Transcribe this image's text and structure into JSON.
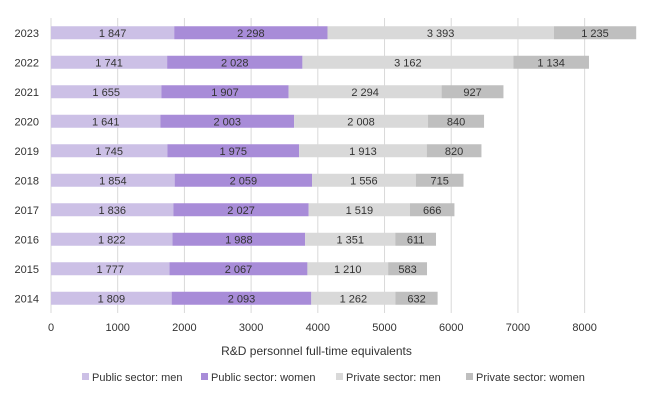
{
  "chart_data": {
    "type": "bar",
    "orientation": "horizontal",
    "stacked": true,
    "categories": [
      "2023",
      "2022",
      "2021",
      "2020",
      "2019",
      "2018",
      "2017",
      "2016",
      "2015",
      "2014"
    ],
    "series": [
      {
        "name": "Public sector: men",
        "color": "#ccc0e6",
        "values": [
          1847,
          1741,
          1655,
          1641,
          1745,
          1854,
          1836,
          1822,
          1777,
          1809
        ],
        "labels": [
          "1 847",
          "1 741",
          "1 655",
          "1 641",
          "1 745",
          "1 854",
          "1 836",
          "1 822",
          "1 777",
          "1 809"
        ]
      },
      {
        "name": "Public sector: women",
        "color": "#a88cd8",
        "values": [
          2298,
          2028,
          1907,
          2003,
          1975,
          2059,
          2027,
          1988,
          2067,
          2093
        ],
        "labels": [
          "2 298",
          "2 028",
          "1 907",
          "2 003",
          "1 975",
          "2 059",
          "2 027",
          "1 988",
          "2 067",
          "2 093"
        ]
      },
      {
        "name": "Private sector: men",
        "color": "#d9d9d9",
        "values": [
          3393,
          3162,
          2294,
          2008,
          1913,
          1556,
          1519,
          1351,
          1210,
          1262
        ],
        "labels": [
          "3 393",
          "3 162",
          "2 294",
          "2 008",
          "1 913",
          "1 556",
          "1 519",
          "1 351",
          "1 210",
          "1 262"
        ]
      },
      {
        "name": "Private sector: women",
        "color": "#bfbfbf",
        "values": [
          1235,
          1134,
          927,
          840,
          820,
          715,
          666,
          611,
          583,
          632
        ],
        "labels": [
          "1 235",
          "1 134",
          "927",
          "840",
          "820",
          "715",
          "666",
          "611",
          "583",
          "632"
        ]
      }
    ],
    "xlabel": "R&D personnel full-time equivalents",
    "ylabel": "",
    "xlim": [
      0,
      8800
    ],
    "xticks": [
      0,
      1000,
      2000,
      3000,
      4000,
      5000,
      6000,
      7000,
      8000
    ],
    "grid": "vertical",
    "legend_position": "bottom"
  }
}
